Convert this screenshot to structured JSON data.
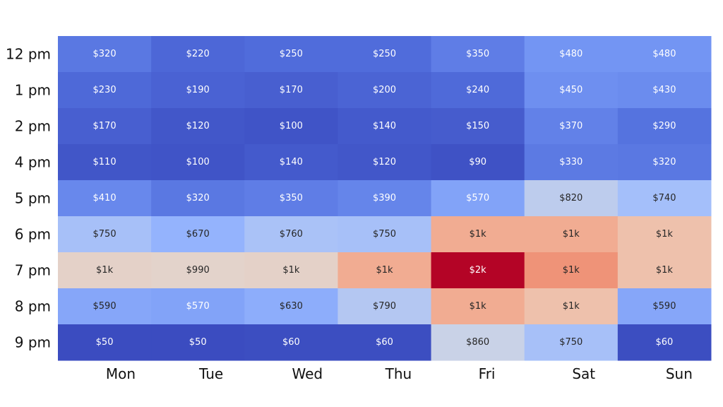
{
  "chart_data": {
    "type": "heatmap",
    "title": "",
    "xlabel": "",
    "ylabel": "",
    "x_categories": [
      "Mon",
      "Tue",
      "Wed",
      "Thu",
      "Fri",
      "Sat",
      "Sun"
    ],
    "y_categories": [
      "12 pm",
      "1 pm",
      "2 pm",
      "4 pm",
      "5 pm",
      "6 pm",
      "7 pm",
      "8 pm",
      "9 pm"
    ],
    "colormap": "coolwarm",
    "values": [
      [
        320,
        220,
        250,
        250,
        350,
        480,
        480
      ],
      [
        230,
        190,
        170,
        200,
        240,
        450,
        430
      ],
      [
        170,
        120,
        100,
        140,
        150,
        370,
        290
      ],
      [
        110,
        100,
        140,
        120,
        90,
        330,
        320
      ],
      [
        410,
        320,
        350,
        390,
        570,
        820,
        740
      ],
      [
        750,
        670,
        760,
        750,
        1200,
        1200,
        1100
      ],
      [
        1000,
        990,
        1000,
        1200,
        1800,
        1300,
        1100
      ],
      [
        590,
        570,
        630,
        790,
        1200,
        1100,
        590
      ],
      [
        50,
        50,
        60,
        60,
        860,
        750,
        60
      ]
    ],
    "labels": [
      [
        "$320",
        "$220",
        "$250",
        "$250",
        "$350",
        "$480",
        "$480"
      ],
      [
        "$230",
        "$190",
        "$170",
        "$200",
        "$240",
        "$450",
        "$430"
      ],
      [
        "$170",
        "$120",
        "$100",
        "$140",
        "$150",
        "$370",
        "$290"
      ],
      [
        "$110",
        "$100",
        "$140",
        "$120",
        "$90",
        "$330",
        "$320"
      ],
      [
        "$410",
        "$320",
        "$350",
        "$390",
        "$570",
        "$820",
        "$740"
      ],
      [
        "$750",
        "$670",
        "$760",
        "$750",
        "$1k",
        "$1k",
        "$1k"
      ],
      [
        "$1k",
        "$990",
        "$1k",
        "$1k",
        "$2k",
        "$1k",
        "$1k"
      ],
      [
        "$590",
        "$570",
        "$630",
        "$790",
        "$1k",
        "$1k",
        "$590"
      ],
      [
        "$50",
        "$50",
        "$60",
        "$60",
        "$860",
        "$750",
        "$60"
      ]
    ]
  }
}
